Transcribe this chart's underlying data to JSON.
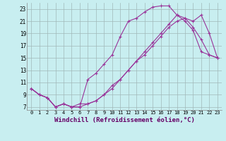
{
  "background_color": "#c8eef0",
  "grid_color": "#a0b8b8",
  "line_color": "#993399",
  "marker": "+",
  "marker_size": 3,
  "line_width": 0.8,
  "xlabel": "Windchill (Refroidissement éolien,°C)",
  "xlabel_fontsize": 6.5,
  "ylabel_ticks": [
    7,
    9,
    11,
    13,
    15,
    17,
    19,
    21,
    23
  ],
  "xlabel_ticks": [
    0,
    1,
    2,
    3,
    4,
    5,
    6,
    7,
    8,
    9,
    10,
    11,
    12,
    13,
    14,
    15,
    16,
    17,
    18,
    19,
    20,
    21,
    22,
    23
  ],
  "xlim": [
    -0.5,
    23.5
  ],
  "ylim": [
    6.5,
    24.0
  ],
  "line1_x": [
    0,
    1,
    2,
    3,
    4,
    5,
    6,
    7,
    8,
    9,
    10,
    11,
    12,
    13,
    14,
    15,
    16,
    17,
    18,
    19,
    20,
    21,
    22,
    23
  ],
  "line1_y": [
    10.0,
    9.0,
    8.5,
    7.0,
    7.5,
    7.0,
    7.0,
    7.5,
    8.0,
    9.0,
    10.5,
    11.5,
    13.0,
    14.5,
    15.5,
    17.0,
    18.5,
    20.0,
    21.0,
    21.5,
    20.0,
    18.0,
    15.5,
    15.0
  ],
  "line2_x": [
    0,
    1,
    2,
    3,
    4,
    5,
    6,
    7,
    8,
    9,
    10,
    11,
    12,
    13,
    14,
    15,
    16,
    17,
    18,
    19,
    20,
    21,
    22,
    23
  ],
  "line2_y": [
    10.0,
    9.0,
    8.5,
    7.0,
    7.5,
    7.0,
    7.0,
    11.5,
    12.5,
    14.0,
    15.5,
    18.5,
    21.0,
    21.5,
    22.5,
    23.3,
    23.5,
    23.5,
    22.0,
    21.5,
    21.0,
    22.0,
    19.0,
    15.0
  ],
  "line3_x": [
    0,
    1,
    2,
    3,
    4,
    5,
    6,
    7,
    8,
    9,
    10,
    11,
    12,
    13,
    14,
    15,
    16,
    17,
    18,
    19,
    20,
    21,
    22,
    23
  ],
  "line3_y": [
    10.0,
    9.0,
    8.5,
    7.0,
    7.5,
    7.0,
    7.5,
    7.5,
    8.0,
    9.0,
    10.0,
    11.5,
    13.0,
    14.5,
    16.0,
    17.5,
    19.0,
    20.5,
    22.0,
    21.0,
    19.5,
    16.0,
    15.5,
    15.0
  ],
  "tick_fontsize": 5,
  "ylabel_fontsize": 5.5
}
